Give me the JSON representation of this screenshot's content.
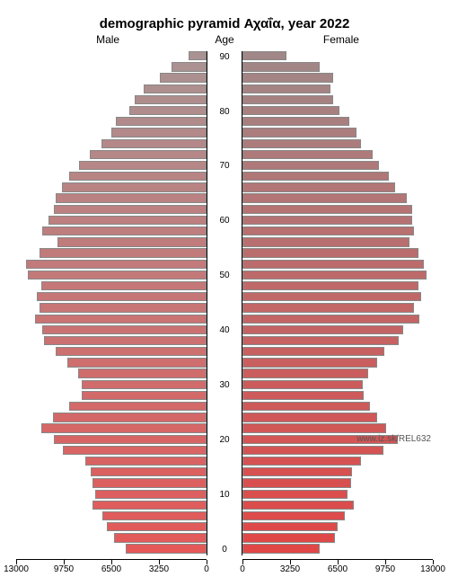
{
  "title": "demographic pyramid Αχαΐα, year 2022",
  "title_fontsize": 15,
  "labels": {
    "male": "Male",
    "age": "Age",
    "female": "Female"
  },
  "label_fontsize": 12,
  "footer": "www.iz.sk/REL632",
  "axis": {
    "max": 13000,
    "tick_step": 3250,
    "ticks": [
      0,
      3250,
      6500,
      9750,
      13000
    ],
    "tick_fontsize": 10
  },
  "age_label_fontsize": 10,
  "center_col_width": 40,
  "row_height": 12.2,
  "bar_height_ratio": 0.85,
  "border_color": "#888888",
  "axis_line_color": "#000000",
  "background_color": "#ffffff",
  "colors": {
    "top_sat": 0.12,
    "bottom_sat": 0.72,
    "male_hue": 0,
    "female_hue": 0,
    "male_light": 0.62,
    "female_light": 0.58
  },
  "rows": [
    {
      "age": 90,
      "showLabel": true,
      "male": 1200,
      "female": 3000
    },
    {
      "age": 88,
      "showLabel": false,
      "male": 2400,
      "female": 5300
    },
    {
      "age": 86,
      "showLabel": false,
      "male": 3200,
      "female": 6200
    },
    {
      "age": 84,
      "showLabel": false,
      "male": 4300,
      "female": 6000
    },
    {
      "age": 82,
      "showLabel": false,
      "male": 4900,
      "female": 6200
    },
    {
      "age": 80,
      "showLabel": true,
      "male": 5300,
      "female": 6600
    },
    {
      "age": 78,
      "showLabel": false,
      "male": 6200,
      "female": 7300
    },
    {
      "age": 76,
      "showLabel": false,
      "male": 6500,
      "female": 7800
    },
    {
      "age": 74,
      "showLabel": false,
      "male": 7200,
      "female": 8100
    },
    {
      "age": 72,
      "showLabel": false,
      "male": 8000,
      "female": 8900
    },
    {
      "age": 70,
      "showLabel": true,
      "male": 8700,
      "female": 9300
    },
    {
      "age": 68,
      "showLabel": false,
      "male": 9400,
      "female": 10000
    },
    {
      "age": 66,
      "showLabel": false,
      "male": 9900,
      "female": 10400
    },
    {
      "age": 64,
      "showLabel": false,
      "male": 10300,
      "female": 11200
    },
    {
      "age": 62,
      "showLabel": false,
      "male": 10400,
      "female": 11600
    },
    {
      "age": 60,
      "showLabel": true,
      "male": 10800,
      "female": 11600
    },
    {
      "age": 58,
      "showLabel": false,
      "male": 11200,
      "female": 11700
    },
    {
      "age": 56,
      "showLabel": false,
      "male": 10200,
      "female": 11400
    },
    {
      "age": 54,
      "showLabel": false,
      "male": 11400,
      "female": 12000
    },
    {
      "age": 52,
      "showLabel": false,
      "male": 12300,
      "female": 12400
    },
    {
      "age": 50,
      "showLabel": true,
      "male": 12200,
      "female": 12600
    },
    {
      "age": 48,
      "showLabel": false,
      "male": 11300,
      "female": 12000
    },
    {
      "age": 46,
      "showLabel": false,
      "male": 11600,
      "female": 12200
    },
    {
      "age": 44,
      "showLabel": false,
      "male": 11400,
      "female": 11700
    },
    {
      "age": 42,
      "showLabel": false,
      "male": 11700,
      "female": 12100
    },
    {
      "age": 40,
      "showLabel": true,
      "male": 11200,
      "female": 11000
    },
    {
      "age": 38,
      "showLabel": false,
      "male": 11100,
      "female": 10700
    },
    {
      "age": 36,
      "showLabel": false,
      "male": 10300,
      "female": 9700
    },
    {
      "age": 34,
      "showLabel": false,
      "male": 9500,
      "female": 9200
    },
    {
      "age": 32,
      "showLabel": false,
      "male": 8800,
      "female": 8600
    },
    {
      "age": 30,
      "showLabel": true,
      "male": 8500,
      "female": 8200
    },
    {
      "age": 28,
      "showLabel": false,
      "male": 8500,
      "female": 8300
    },
    {
      "age": 26,
      "showLabel": false,
      "male": 9400,
      "female": 8700
    },
    {
      "age": 24,
      "showLabel": false,
      "male": 10500,
      "female": 9200
    },
    {
      "age": 22,
      "showLabel": false,
      "male": 11300,
      "female": 9800
    },
    {
      "age": 20,
      "showLabel": true,
      "male": 10400,
      "female": 10600
    },
    {
      "age": 18,
      "showLabel": false,
      "male": 9800,
      "female": 9600
    },
    {
      "age": 16,
      "showLabel": false,
      "male": 8300,
      "female": 8100
    },
    {
      "age": 14,
      "showLabel": false,
      "male": 7900,
      "female": 7500
    },
    {
      "age": 12,
      "showLabel": false,
      "male": 7800,
      "female": 7400
    },
    {
      "age": 10,
      "showLabel": true,
      "male": 7600,
      "female": 7200
    },
    {
      "age": 8,
      "showLabel": false,
      "male": 7800,
      "female": 7600
    },
    {
      "age": 6,
      "showLabel": false,
      "male": 7100,
      "female": 7000
    },
    {
      "age": 4,
      "showLabel": false,
      "male": 6800,
      "female": 6500
    },
    {
      "age": 2,
      "showLabel": false,
      "male": 6300,
      "female": 6300
    },
    {
      "age": 0,
      "showLabel": true,
      "male": 5500,
      "female": 5300
    }
  ]
}
